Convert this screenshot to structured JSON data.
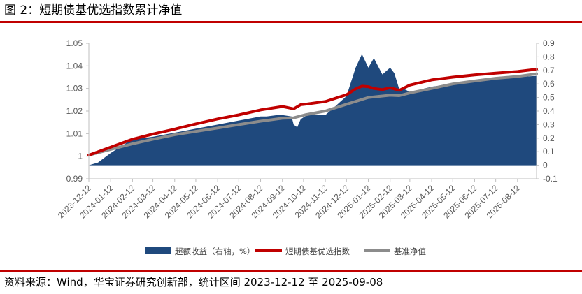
{
  "figure": {
    "title": "图 2：短期债基优选指数累计净值",
    "source": "资料来源：Wind，华宝证券研究创新部，统计区间 2023-12-12 至 2025-09-08"
  },
  "colors": {
    "rule": "#c00000",
    "excess_area": "#1f497d",
    "index_line": "#c00000",
    "benchmark_line": "#8c8c8c",
    "axis": "#bfbfbf",
    "tick_text": "#595959"
  },
  "chart_data": {
    "type": "line",
    "x": [
      "2023-12-12",
      "2024-01-12",
      "2024-02-12",
      "2024-03-12",
      "2024-04-12",
      "2024-05-12",
      "2024-06-12",
      "2024-07-12",
      "2024-08-12",
      "2024-09-12",
      "2024-10-12",
      "2024-11-12",
      "2024-12-12",
      "2025-01-12",
      "2025-02-12",
      "2025-03-12",
      "2025-04-12",
      "2025-05-12",
      "2025-06-12",
      "2025-07-12",
      "2025-08-12"
    ],
    "xlim": [
      "2023-12-12",
      "2025-09-08"
    ],
    "y_left": {
      "ticks": [
        "0.99",
        "1",
        "1.01",
        "1.02",
        "1.03",
        "1.04",
        "1.05"
      ],
      "ylim": [
        0.99,
        1.05
      ]
    },
    "y_right": {
      "ticks": [
        "-0.1",
        "0",
        "0.1",
        "0.2",
        "0.3",
        "0.4",
        "0.5",
        "0.6",
        "0.7",
        "0.8",
        "0.9"
      ],
      "ylim": [
        -0.1,
        0.9
      ]
    },
    "grid": false,
    "legend_position": "bottom",
    "series": [
      {
        "name": "超额收益（右轴，%）",
        "kind": "area",
        "axis": "right",
        "x": [
          "2023-12-12",
          "2023-12-25",
          "2024-01-12",
          "2024-02-05",
          "2024-02-12",
          "2024-03-12",
          "2024-04-12",
          "2024-05-12",
          "2024-06-12",
          "2024-07-12",
          "2024-08-12",
          "2024-08-20",
          "2024-09-05",
          "2024-09-12",
          "2024-09-25",
          "2024-09-28",
          "2024-10-03",
          "2024-10-08",
          "2024-10-14",
          "2024-10-20",
          "2024-11-12",
          "2024-11-25",
          "2024-12-12",
          "2024-12-25",
          "2025-01-03",
          "2025-01-12",
          "2025-01-20",
          "2025-02-01",
          "2025-02-12",
          "2025-02-18",
          "2025-02-25",
          "2025-03-05",
          "2025-03-12",
          "2025-03-20",
          "2025-04-12",
          "2025-05-12",
          "2025-06-12",
          "2025-07-12",
          "2025-08-12",
          "2025-09-08"
        ],
        "values": [
          0.0,
          0.02,
          0.09,
          0.17,
          0.19,
          0.21,
          0.24,
          0.27,
          0.3,
          0.33,
          0.36,
          0.36,
          0.37,
          0.37,
          0.36,
          0.3,
          0.28,
          0.34,
          0.36,
          0.37,
          0.37,
          0.43,
          0.51,
          0.72,
          0.82,
          0.72,
          0.79,
          0.67,
          0.72,
          0.68,
          0.56,
          0.56,
          0.54,
          0.55,
          0.58,
          0.6,
          0.62,
          0.64,
          0.65,
          0.66
        ]
      },
      {
        "name": "短期债基优选指数",
        "kind": "line",
        "axis": "left",
        "x": [
          "2023-12-12",
          "2024-01-12",
          "2024-02-12",
          "2024-03-12",
          "2024-04-12",
          "2024-05-12",
          "2024-06-12",
          "2024-07-12",
          "2024-08-12",
          "2024-09-12",
          "2024-09-28",
          "2024-10-08",
          "2024-10-14",
          "2024-11-12",
          "2024-12-12",
          "2024-12-25",
          "2025-01-03",
          "2025-01-12",
          "2025-01-20",
          "2025-02-01",
          "2025-02-12",
          "2025-02-25",
          "2025-03-12",
          "2025-04-12",
          "2025-05-12",
          "2025-06-12",
          "2025-07-12",
          "2025-08-12",
          "2025-09-08"
        ],
        "values": [
          1.0005,
          1.004,
          1.0075,
          1.0098,
          1.012,
          1.0143,
          1.0165,
          1.0183,
          1.0205,
          1.022,
          1.021,
          1.0228,
          1.023,
          1.0242,
          1.0272,
          1.0298,
          1.031,
          1.0308,
          1.03,
          1.0295,
          1.0303,
          1.0292,
          1.0315,
          1.0338,
          1.035,
          1.036,
          1.0368,
          1.0375,
          1.0385
        ]
      },
      {
        "name": "基准净值",
        "kind": "line",
        "axis": "left",
        "x": [
          "2023-12-12",
          "2024-01-12",
          "2024-02-12",
          "2024-03-12",
          "2024-04-12",
          "2024-05-12",
          "2024-06-12",
          "2024-07-12",
          "2024-08-12",
          "2024-09-12",
          "2024-09-28",
          "2024-10-08",
          "2024-10-14",
          "2024-11-12",
          "2024-12-12",
          "2025-01-12",
          "2025-02-12",
          "2025-02-25",
          "2025-03-12",
          "2025-04-12",
          "2025-05-12",
          "2025-06-12",
          "2025-07-12",
          "2025-08-12",
          "2025-09-08"
        ],
        "values": [
          1.0005,
          1.003,
          1.0055,
          1.0075,
          1.0095,
          1.011,
          1.0125,
          1.014,
          1.0155,
          1.0168,
          1.017,
          1.0178,
          1.0183,
          1.02,
          1.023,
          1.026,
          1.027,
          1.0268,
          1.028,
          1.03,
          1.032,
          1.0333,
          1.0345,
          1.0353,
          1.0365
        ]
      }
    ]
  }
}
